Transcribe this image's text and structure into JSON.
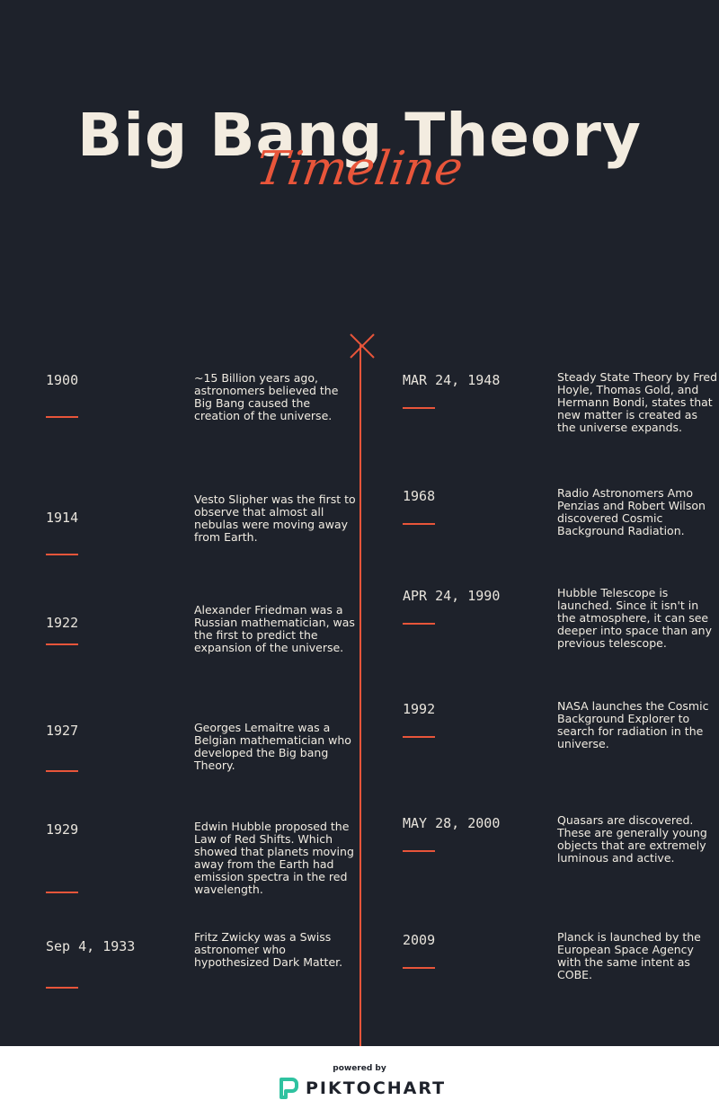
{
  "header": {
    "title": "Big Bang Theory",
    "subtitle": "Timeline"
  },
  "colors": {
    "background": "#1e222b",
    "accent": "#e8553a",
    "text": "#f3ece0"
  },
  "left_events": [
    {
      "date": "1900",
      "text": "~15 Billion years ago, astronomers believed the Big Bang caused the creation of the universe."
    },
    {
      "date": "1914",
      "text": "Vesto Slipher was the first to observe that almost all nebulas were moving away from Earth."
    },
    {
      "date": "1922",
      "text": "Alexander Friedman was a Russian mathematician, was the first to predict the expansion of the universe."
    },
    {
      "date": "1927",
      "text": "Georges Lemaitre was a Belgian mathematician who developed the Big bang Theory."
    },
    {
      "date": "1929",
      "text": "Edwin Hubble proposed the Law of Red Shifts.  Which showed that planets moving away from the Earth had emission spectra in the red wavelength."
    },
    {
      "date": "Sep 4, 1933",
      "text": "Fritz Zwicky was a Swiss astronomer who hypothesized Dark Matter."
    }
  ],
  "right_events": [
    {
      "date": "MAR 24, 1948",
      "text": "Steady State Theory by Fred Hoyle, Thomas Gold, and Hermann Bondi, states that new matter is created as the universe expands."
    },
    {
      "date": "1968",
      "text": "Radio Astronomers Amo Penzias and Robert Wilson discovered Cosmic Background Radiation."
    },
    {
      "date": "APR 24, 1990",
      "text": "Hubble Telescope is launched.  Since it isn't in the atmosphere, it can see deeper into space than any previous telescope."
    },
    {
      "date": "1992",
      "text": "NASA launches the Cosmic Background Explorer to search for radiation in the universe."
    },
    {
      "date": "MAY 28, 2000",
      "text": "Quasars are discovered.  These are generally young objects that are extremely luminous and active."
    },
    {
      "date": "2009",
      "text": "Planck is launched by the European Space Agency with the same intent as COBE."
    }
  ],
  "footer": {
    "powered_by": "powered by",
    "brand": "PIKTOCHART",
    "logo_icon": "piktochart-logo-icon"
  }
}
